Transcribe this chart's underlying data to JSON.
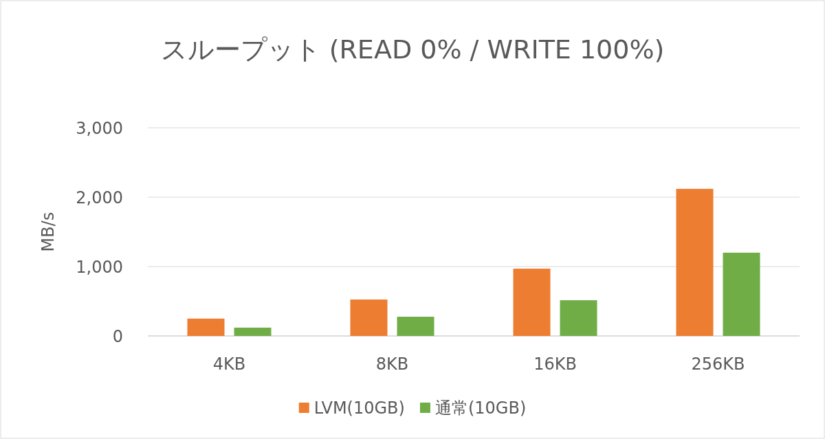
{
  "chart_data": {
    "type": "bar",
    "title": "スループット (READ 0% / WRITE 100%)",
    "ylabel": "MB/s",
    "categories": [
      "4KB",
      "8KB",
      "16KB",
      "256KB"
    ],
    "series": [
      {
        "name": "LVM(10GB)",
        "color": "#ed7d31",
        "values": [
          250,
          525,
          970,
          2120
        ]
      },
      {
        "name": "通常(10GB)",
        "color": "#70ad47",
        "values": [
          120,
          277,
          515,
          1200
        ]
      }
    ],
    "ylim": [
      0,
      3000
    ],
    "yticks": [
      0,
      {
        "value": 1000,
        "label": "1,000"
      },
      {
        "value": 2000,
        "label": "2,000"
      },
      {
        "value": 3000,
        "label": "3,000"
      }
    ],
    "grid": "y",
    "legend": "bottom"
  }
}
